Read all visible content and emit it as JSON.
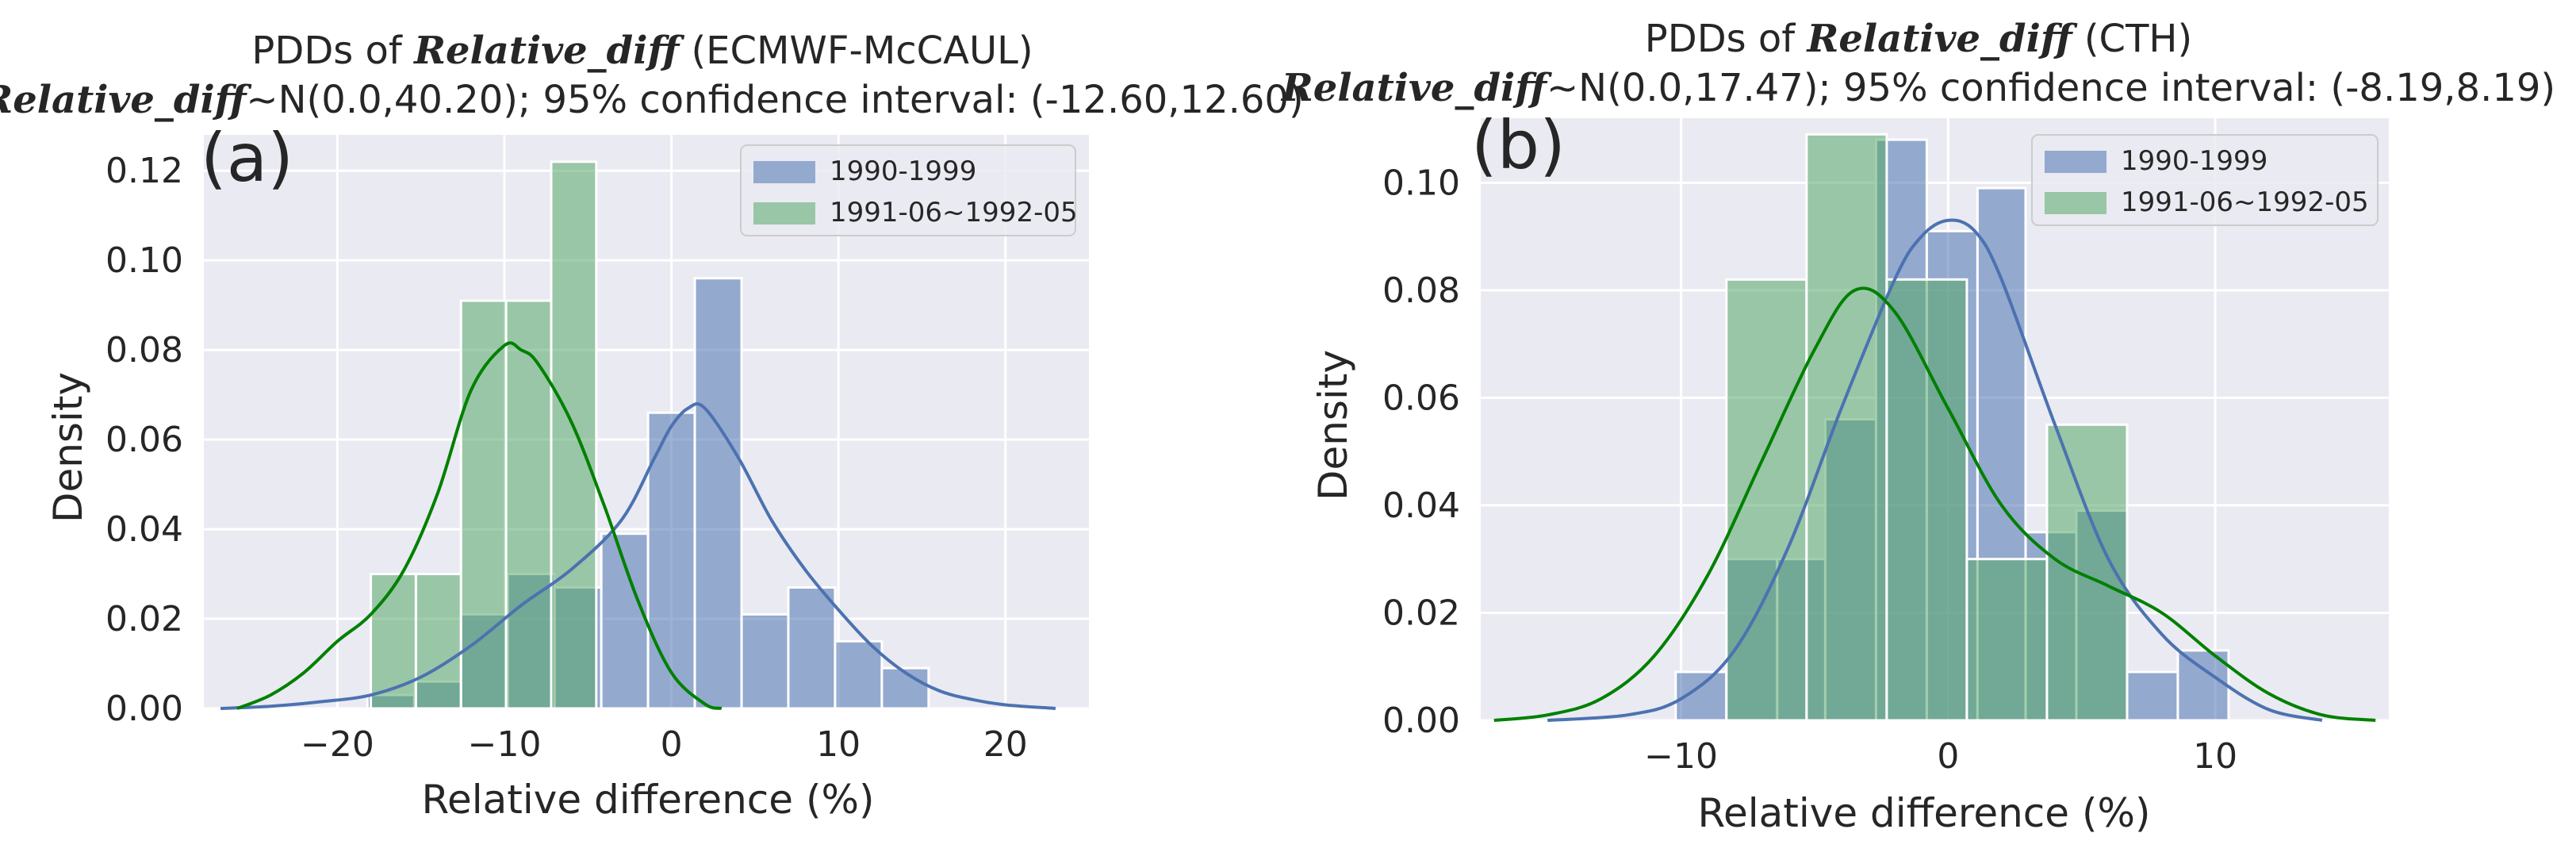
{
  "chart_data": [
    {
      "type": "histogram+kde",
      "panel_label": "(a)",
      "title": {
        "line1": {
          "prefix": "PDDs of ",
          "italic": "Relative_diff",
          "suffix": " (ECMWF-McCAUL)"
        },
        "line2": {
          "italic": "Relative_diff",
          "suffix": "~N(0.0,40.20); 95% confidence interval: (-12.60,12.60)"
        }
      },
      "xlabel": "Relative difference (%)",
      "ylabel": "Density",
      "xlim": [
        -28,
        25
      ],
      "ylim": [
        0,
        0.128
      ],
      "xticks": [
        -20,
        -10,
        0,
        10,
        20
      ],
      "xtick_labels": [
        "−20",
        "−10",
        "0",
        "10",
        "20"
      ],
      "yticks": [
        0.0,
        0.02,
        0.04,
        0.06,
        0.08,
        0.1,
        0.12
      ],
      "ytick_labels": [
        "0.00",
        "0.02",
        "0.04",
        "0.06",
        "0.08",
        "0.10",
        "0.12"
      ],
      "grid": true,
      "legend_position": "upper right",
      "legend": [
        "1990-1999",
        "1991-06~1992-05"
      ],
      "series": [
        {
          "name": "1990-1999",
          "color": "#4c72b0",
          "bins": [
            {
              "x0": -18.2,
              "x1": -15.4,
              "y": 0.003
            },
            {
              "x0": -15.4,
              "x1": -12.6,
              "y": 0.006
            },
            {
              "x0": -12.6,
              "x1": -9.8,
              "y": 0.021
            },
            {
              "x0": -9.8,
              "x1": -7.0,
              "y": 0.03
            },
            {
              "x0": -7.0,
              "x1": -4.2,
              "y": 0.027
            },
            {
              "x0": -4.2,
              "x1": -1.4,
              "y": 0.039
            },
            {
              "x0": -1.4,
              "x1": 1.4,
              "y": 0.066
            },
            {
              "x0": 1.4,
              "x1": 4.2,
              "y": 0.096
            },
            {
              "x0": 4.2,
              "x1": 7.0,
              "y": 0.021
            },
            {
              "x0": 7.0,
              "x1": 9.8,
              "y": 0.027
            },
            {
              "x0": 9.8,
              "x1": 12.6,
              "y": 0.015
            },
            {
              "x0": 12.6,
              "x1": 15.4,
              "y": 0.009
            }
          ],
          "kde": {
            "x": [
              -27,
              -24,
              -21,
              -18,
              -15,
              -12,
              -9,
              -6,
              -3,
              -1,
              0,
              1,
              2,
              4,
              6,
              8,
              10,
              12,
              14,
              16,
              18,
              20,
              23
            ],
            "y": [
              0.0,
              0.0005,
              0.0015,
              0.003,
              0.007,
              0.014,
              0.023,
              0.031,
              0.042,
              0.056,
              0.063,
              0.067,
              0.067,
              0.056,
              0.042,
              0.031,
              0.022,
              0.014,
              0.008,
              0.004,
              0.002,
              0.0008,
              0.0
            ]
          }
        },
        {
          "name": "1991-06~1992-05",
          "color": "#55a868",
          "bins": [
            {
              "x0": -18.0,
              "x1": -15.3,
              "y": 0.03
            },
            {
              "x0": -15.3,
              "x1": -12.6,
              "y": 0.03
            },
            {
              "x0": -12.6,
              "x1": -9.9,
              "y": 0.091
            },
            {
              "x0": -9.9,
              "x1": -7.2,
              "y": 0.091
            },
            {
              "x0": -7.2,
              "x1": -4.5,
              "y": 0.122
            }
          ],
          "kde": {
            "x": [
              -26,
              -24,
              -22,
              -20,
              -18,
              -16,
              -14,
              -12,
              -10,
              -9,
              -8,
              -6,
              -4,
              -2,
              0,
              2,
              3
            ],
            "y": [
              0.0,
              0.003,
              0.008,
              0.015,
              0.021,
              0.031,
              0.048,
              0.071,
              0.081,
              0.08,
              0.077,
              0.064,
              0.045,
              0.024,
              0.008,
              0.001,
              0.0
            ]
          }
        }
      ]
    },
    {
      "type": "histogram+kde",
      "panel_label": "(b)",
      "title": {
        "line1": {
          "prefix": "PDDs of ",
          "italic": "Relative_diff",
          "suffix": " (CTH)"
        },
        "line2": {
          "italic": "Relative_diff",
          "suffix": "~N(0.0,17.47); 95% confidence interval: (-8.19,8.19)"
        }
      },
      "xlabel": "Relative difference (%)",
      "ylabel": "Density",
      "xlim": [
        -17.5,
        16.5
      ],
      "ylim": [
        0,
        0.112
      ],
      "xticks": [
        -10,
        0,
        10
      ],
      "xtick_labels": [
        "−10",
        "0",
        "10"
      ],
      "yticks": [
        0.0,
        0.02,
        0.04,
        0.06,
        0.08,
        0.1
      ],
      "ytick_labels": [
        "0.00",
        "0.02",
        "0.04",
        "0.06",
        "0.08",
        "0.10"
      ],
      "grid": true,
      "legend_position": "upper right",
      "legend": [
        "1990-1999",
        "1991-06~1992-05"
      ],
      "series": [
        {
          "name": "1990-1999",
          "color": "#4c72b0",
          "bins": [
            {
              "x0": -10.2,
              "x1": -8.3,
              "y": 0.009
            },
            {
              "x0": -8.3,
              "x1": -6.4,
              "y": 0.03
            },
            {
              "x0": -6.4,
              "x1": -4.6,
              "y": 0.03
            },
            {
              "x0": -4.6,
              "x1": -2.7,
              "y": 0.056
            },
            {
              "x0": -2.7,
              "x1": -0.8,
              "y": 0.108
            },
            {
              "x0": -0.8,
              "x1": 1.1,
              "y": 0.091
            },
            {
              "x0": 1.1,
              "x1": 2.9,
              "y": 0.099
            },
            {
              "x0": 2.9,
              "x1": 4.8,
              "y": 0.035
            },
            {
              "x0": 4.8,
              "x1": 6.7,
              "y": 0.039
            },
            {
              "x0": 6.7,
              "x1": 8.6,
              "y": 0.009
            },
            {
              "x0": 8.6,
              "x1": 10.5,
              "y": 0.013
            }
          ],
          "kde": {
            "x": [
              -15,
              -12,
              -10,
              -8,
              -6,
              -4,
              -2,
              -1,
              0,
              1,
              2,
              4,
              6,
              8,
              10,
              12,
              14
            ],
            "y": [
              0.0,
              0.001,
              0.004,
              0.013,
              0.032,
              0.058,
              0.082,
              0.09,
              0.093,
              0.091,
              0.082,
              0.055,
              0.03,
              0.016,
              0.008,
              0.002,
              0.0
            ]
          }
        },
        {
          "name": "1991-06~1992-05",
          "color": "#55a868",
          "bins": [
            {
              "x0": -8.3,
              "x1": -5.3,
              "y": 0.082
            },
            {
              "x0": -5.3,
              "x1": -2.3,
              "y": 0.109
            },
            {
              "x0": -2.3,
              "x1": 0.7,
              "y": 0.082
            },
            {
              "x0": 0.7,
              "x1": 3.7,
              "y": 0.03
            },
            {
              "x0": 3.7,
              "x1": 6.7,
              "y": 0.055
            }
          ],
          "kde": {
            "x": [
              -17,
              -15,
              -13,
              -11,
              -9,
              -7,
              -5,
              -3.5,
              -2,
              0,
              2,
              4,
              6,
              8,
              10,
              12,
              14,
              16
            ],
            "y": [
              0.0,
              0.001,
              0.004,
              0.012,
              0.027,
              0.048,
              0.069,
              0.08,
              0.076,
              0.058,
              0.04,
              0.03,
              0.025,
              0.02,
              0.012,
              0.005,
              0.001,
              0.0
            ]
          }
        }
      ]
    }
  ]
}
